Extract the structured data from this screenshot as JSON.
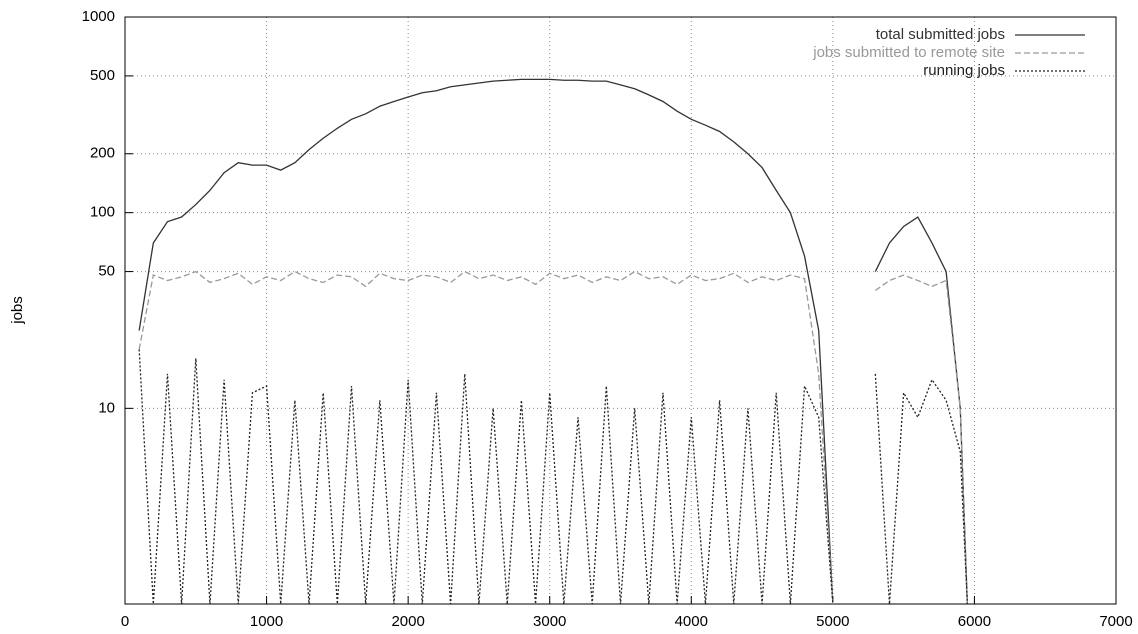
{
  "chart_data": {
    "type": "line",
    "y_label": "jobs",
    "x": [
      100,
      200,
      300,
      400,
      500,
      600,
      700,
      800,
      900,
      1000,
      1100,
      1200,
      1300,
      1400,
      1500,
      1600,
      1700,
      1800,
      1900,
      2000,
      2100,
      2200,
      2300,
      2400,
      2500,
      2600,
      2700,
      2800,
      2900,
      3000,
      3100,
      3200,
      3300,
      3400,
      3500,
      3600,
      3700,
      3800,
      3900,
      4000,
      4100,
      4200,
      4300,
      4400,
      4500,
      4600,
      4700,
      4800,
      4900,
      5000,
      5100,
      5200,
      5300,
      5400,
      5500,
      5600,
      5700,
      5800,
      5900,
      5950
    ],
    "series": [
      {
        "name": "total submitted jobs",
        "color": "#333333",
        "dash": "none",
        "values": [
          25,
          70,
          90,
          95,
          110,
          130,
          160,
          180,
          175,
          175,
          165,
          180,
          210,
          240,
          270,
          300,
          320,
          350,
          370,
          390,
          410,
          420,
          440,
          450,
          460,
          470,
          475,
          480,
          480,
          480,
          475,
          475,
          470,
          470,
          450,
          430,
          400,
          370,
          330,
          300,
          280,
          260,
          230,
          200,
          170,
          130,
          100,
          60,
          25,
          1,
          null,
          null,
          50,
          70,
          85,
          95,
          70,
          50,
          10,
          1
        ]
      },
      {
        "name": "jobs submitted to remote site",
        "color": "#999999",
        "dash": "6,3",
        "values": [
          20,
          48,
          45,
          47,
          50,
          44,
          46,
          49,
          43,
          47,
          45,
          50,
          46,
          44,
          48,
          47,
          42,
          49,
          46,
          45,
          48,
          47,
          44,
          50,
          46,
          48,
          45,
          47,
          43,
          49,
          46,
          48,
          44,
          47,
          45,
          50,
          46,
          47,
          43,
          48,
          45,
          46,
          49,
          44,
          47,
          45,
          48,
          46,
          15,
          1,
          null,
          null,
          40,
          45,
          48,
          45,
          42,
          45,
          10,
          1
        ]
      },
      {
        "name": "running jobs",
        "color": "#222222",
        "dash": "2,2",
        "values": [
          20,
          1,
          15,
          1,
          18,
          1,
          14,
          1,
          12,
          13,
          1,
          11,
          1,
          12,
          1,
          13,
          1,
          11,
          1,
          14,
          1,
          12,
          1,
          15,
          1,
          10,
          1,
          11,
          1,
          12,
          1,
          9,
          1,
          13,
          1,
          10,
          1,
          12,
          1,
          9,
          1,
          11,
          1,
          10,
          1,
          12,
          1,
          13,
          9,
          1,
          null,
          null,
          15,
          1,
          12,
          9,
          14,
          11,
          6,
          1
        ]
      }
    ],
    "xlim": [
      0,
      7000
    ],
    "xticks": [
      0,
      1000,
      2000,
      3000,
      4000,
      5000,
      6000,
      7000
    ],
    "ylim": [
      1,
      1000
    ],
    "yticks": [
      10,
      50,
      100,
      200,
      500,
      1000
    ],
    "ylog": true,
    "grid": true,
    "legend": "top-right"
  }
}
